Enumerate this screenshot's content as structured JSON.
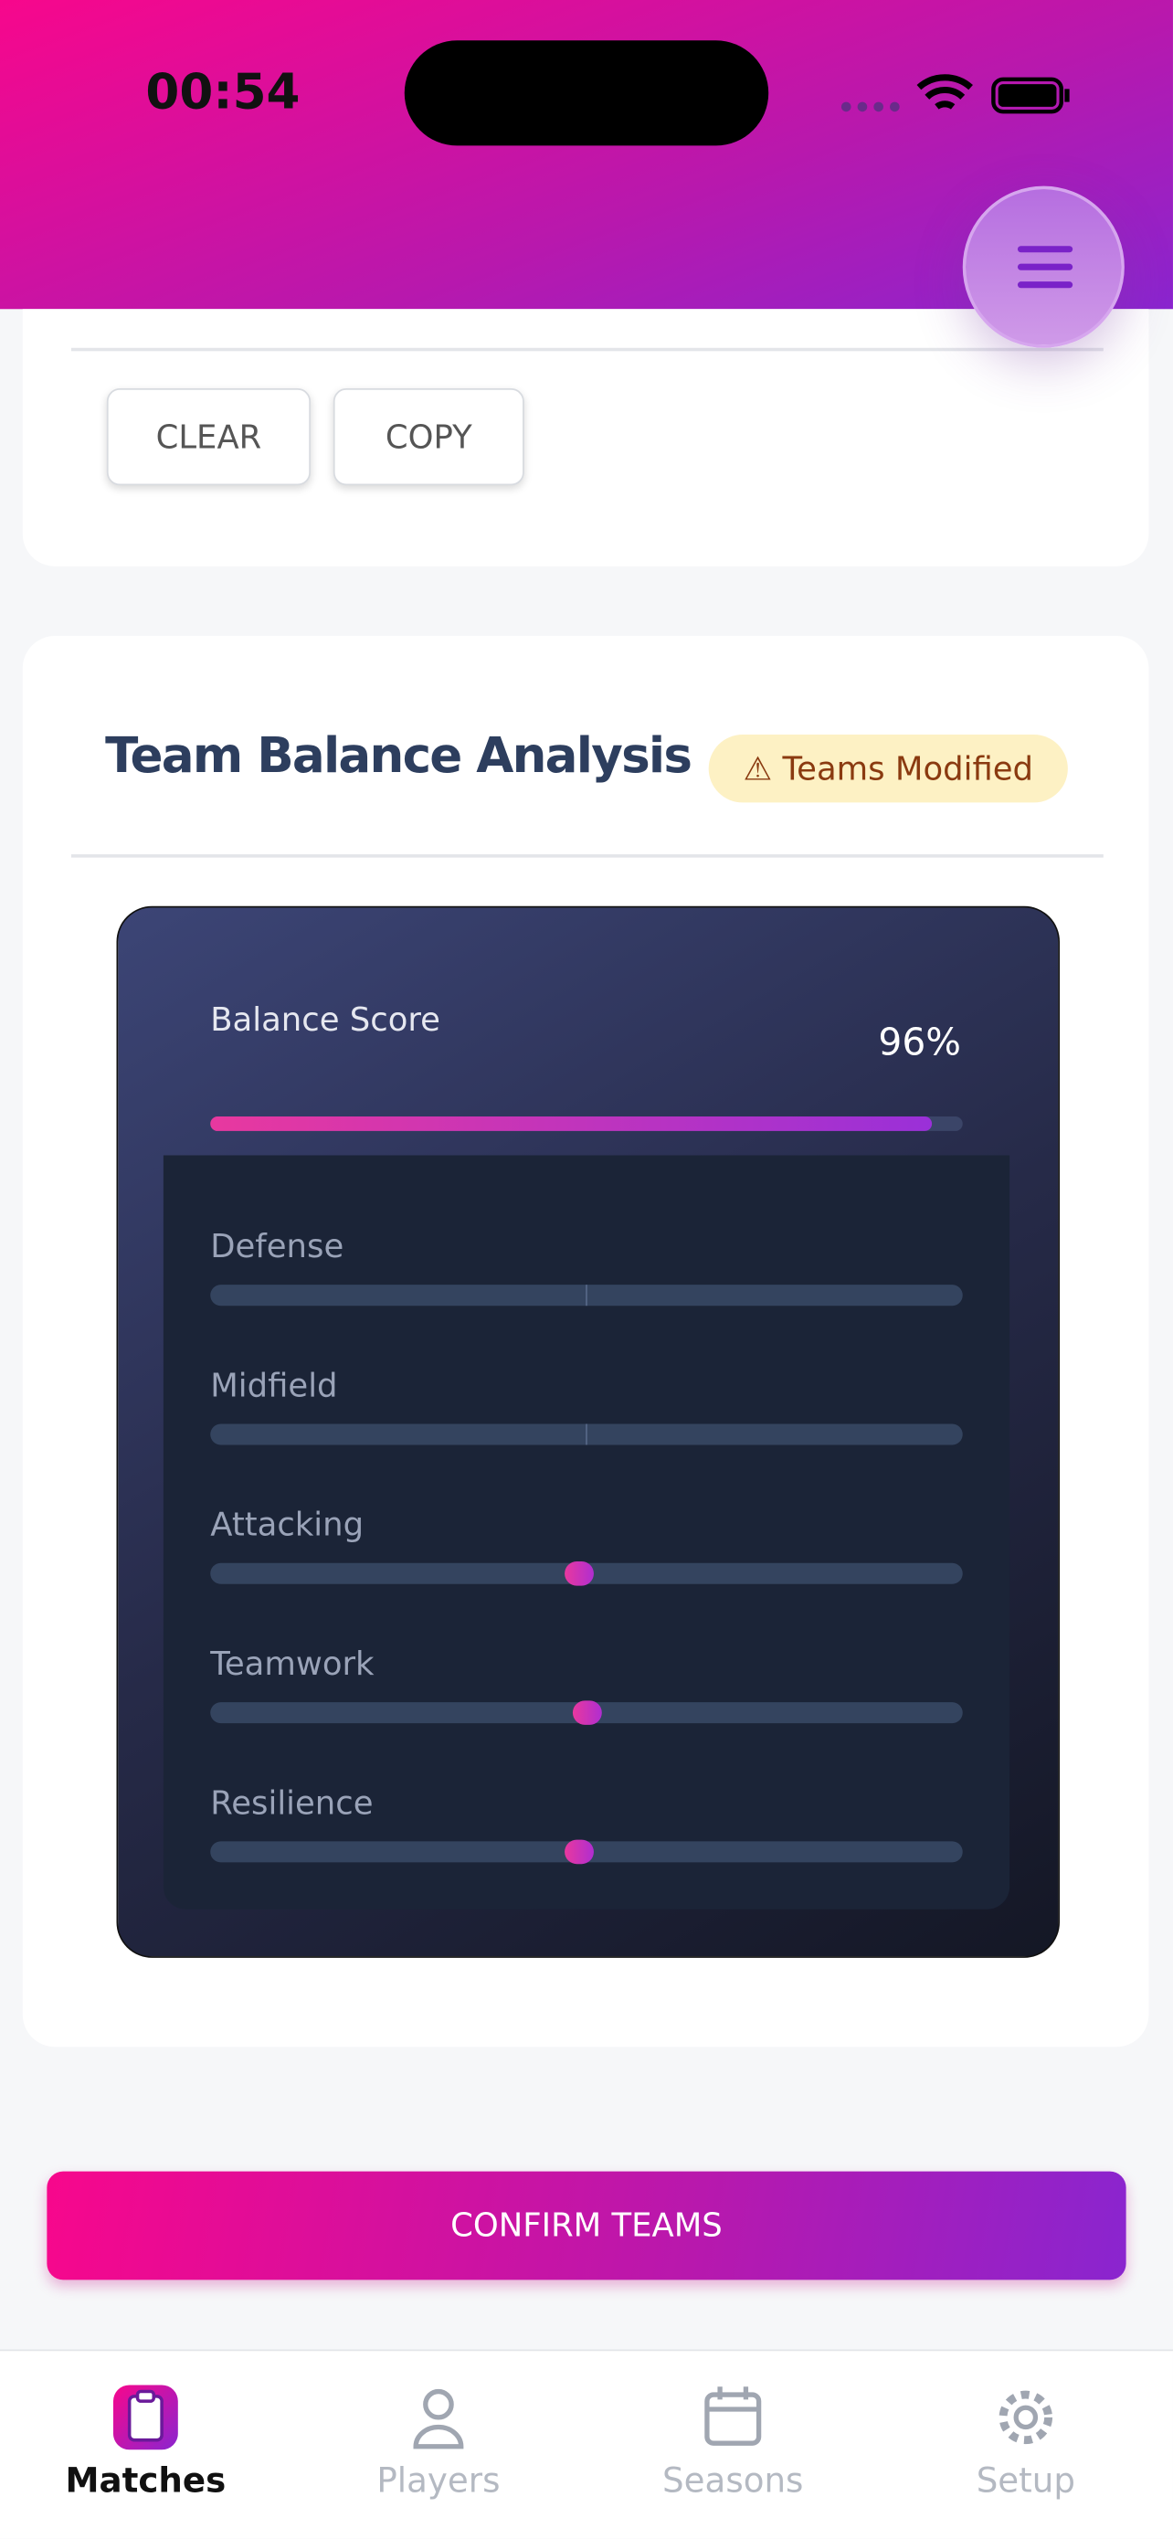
{
  "status_bar": {
    "time": "00:54"
  },
  "actions": {
    "buttons": [
      "CLEAR",
      "COPY"
    ]
  },
  "analysis": {
    "title": "Team Balance Analysis",
    "badge": "Teams Modified",
    "balance_score": {
      "label": "Balance Score",
      "value": {
        "value": 96,
        "label": "96%"
      }
    },
    "metrics": [
      {
        "name": "Defense",
        "marker": null
      },
      {
        "name": "Midfield",
        "marker": null
      },
      {
        "name": "Attacking",
        "marker": 0.48
      },
      {
        "name": "Teamwork",
        "marker": 0.49
      },
      {
        "name": "Resilience",
        "marker": 0.48
      }
    ]
  },
  "confirm_button": "CONFIRM TEAMS",
  "nav": {
    "items": [
      "Matches",
      "Players",
      "Seasons",
      "Setup"
    ],
    "active": 0
  }
}
